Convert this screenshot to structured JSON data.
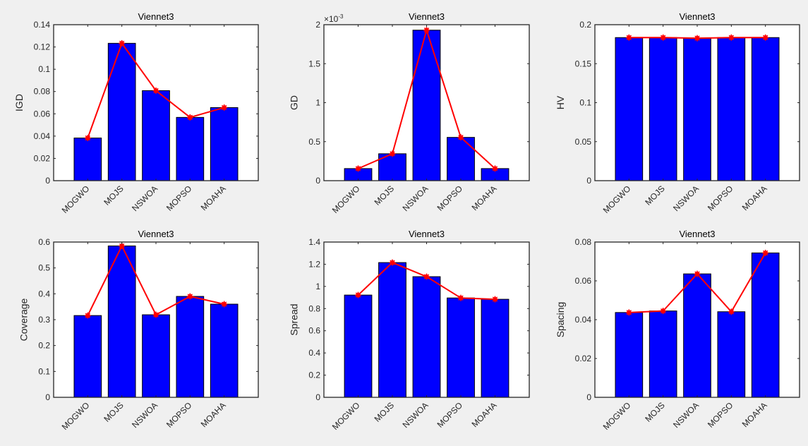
{
  "figure": {
    "background": "#f0f0f0",
    "bar_color": "#0000ff",
    "line_color": "#ff0000"
  },
  "chart_data": [
    {
      "type": "bar",
      "title": "Viennet3",
      "xlabel": "",
      "ylabel": "IGD",
      "categories": [
        "MOGWO",
        "MOJS",
        "NSWOA",
        "MOPSO",
        "MOAHA"
      ],
      "values": [
        0.0383,
        0.1233,
        0.0808,
        0.0568,
        0.0656
      ],
      "overlay_line": {
        "type": "line",
        "marker": "asterisk-dot",
        "values": [
          0.0383,
          0.1233,
          0.0808,
          0.0568,
          0.0656
        ]
      },
      "ylim": [
        0,
        0.14
      ],
      "yticks": [
        0,
        0.02,
        0.04,
        0.06,
        0.08,
        0.1,
        0.12,
        0.14
      ],
      "ytick_labels": [
        "0",
        "0.02",
        "0.04",
        "0.06",
        "0.08",
        "0.1",
        "0.12",
        "0.14"
      ],
      "exponent_label": "",
      "grid": false
    },
    {
      "type": "bar",
      "title": "Viennet3",
      "xlabel": "",
      "ylabel": "GD",
      "categories": [
        "MOGWO",
        "MOJS",
        "NSWOA",
        "MOPSO",
        "MOAHA"
      ],
      "values": [
        0.000155,
        0.000345,
        0.00193,
        0.000555,
        0.000155
      ],
      "overlay_line": {
        "type": "line",
        "marker": "asterisk-dot",
        "values": [
          0.000155,
          0.000345,
          0.00193,
          0.000555,
          0.000155
        ]
      },
      "ylim": [
        0,
        0.002
      ],
      "yticks": [
        0,
        0.0005,
        0.001,
        0.0015,
        0.002
      ],
      "ytick_labels": [
        "0",
        "0.5",
        "1",
        "1.5",
        "2"
      ],
      "exponent_label": "×10",
      "exponent_power": "-3",
      "grid": false
    },
    {
      "type": "bar",
      "title": "Viennet3",
      "xlabel": "",
      "ylabel": "HV",
      "categories": [
        "MOGWO",
        "MOJS",
        "NSWOA",
        "MOPSO",
        "MOAHA"
      ],
      "values": [
        0.1835,
        0.1835,
        0.1827,
        0.1835,
        0.1835
      ],
      "overlay_line": {
        "type": "line",
        "marker": "asterisk-dot",
        "values": [
          0.1835,
          0.1835,
          0.1827,
          0.1835,
          0.1835
        ]
      },
      "ylim": [
        0,
        0.2
      ],
      "yticks": [
        0,
        0.05,
        0.1,
        0.15,
        0.2
      ],
      "ytick_labels": [
        "0",
        "0.05",
        "0.1",
        "0.15",
        "0.2"
      ],
      "exponent_label": "",
      "grid": false
    },
    {
      "type": "bar",
      "title": "Viennet3",
      "xlabel": "",
      "ylabel": "Coverage",
      "categories": [
        "MOGWO",
        "MOJS",
        "NSWOA",
        "MOPSO",
        "MOAHA"
      ],
      "values": [
        0.316,
        0.585,
        0.319,
        0.39,
        0.36
      ],
      "overlay_line": {
        "type": "line",
        "marker": "asterisk-dot",
        "values": [
          0.316,
          0.585,
          0.319,
          0.39,
          0.36
        ]
      },
      "ylim": [
        0,
        0.6
      ],
      "yticks": [
        0,
        0.1,
        0.2,
        0.3,
        0.4,
        0.5,
        0.6
      ],
      "ytick_labels": [
        "0",
        "0.1",
        "0.2",
        "0.3",
        "0.4",
        "0.5",
        "0.6"
      ],
      "exponent_label": "",
      "grid": false
    },
    {
      "type": "bar",
      "title": "Viennet3",
      "xlabel": "",
      "ylabel": "Spread",
      "categories": [
        "MOGWO",
        "MOJS",
        "NSWOA",
        "MOPSO",
        "MOAHA"
      ],
      "values": [
        0.922,
        1.215,
        1.088,
        0.896,
        0.884
      ],
      "overlay_line": {
        "type": "line",
        "marker": "asterisk-dot",
        "values": [
          0.922,
          1.215,
          1.088,
          0.896,
          0.884
        ]
      },
      "ylim": [
        0,
        1.4
      ],
      "yticks": [
        0,
        0.2,
        0.4,
        0.6,
        0.8,
        1,
        1.2,
        1.4
      ],
      "ytick_labels": [
        "0",
        "0.2",
        "0.4",
        "0.6",
        "0.8",
        "1",
        "1.2",
        "1.4"
      ],
      "exponent_label": "",
      "grid": false
    },
    {
      "type": "bar",
      "title": "Viennet3",
      "xlabel": "",
      "ylabel": "Spacing",
      "categories": [
        "MOGWO",
        "MOJS",
        "NSWOA",
        "MOPSO",
        "MOAHA"
      ],
      "values": [
        0.0437,
        0.0445,
        0.0636,
        0.0441,
        0.0744
      ],
      "overlay_line": {
        "type": "line",
        "marker": "asterisk-dot",
        "values": [
          0.0437,
          0.0445,
          0.0636,
          0.0441,
          0.0744
        ]
      },
      "ylim": [
        0,
        0.08
      ],
      "yticks": [
        0,
        0.02,
        0.04,
        0.06,
        0.08
      ],
      "ytick_labels": [
        "0",
        "0.02",
        "0.04",
        "0.06",
        "0.08"
      ],
      "exponent_label": "",
      "grid": false
    }
  ]
}
